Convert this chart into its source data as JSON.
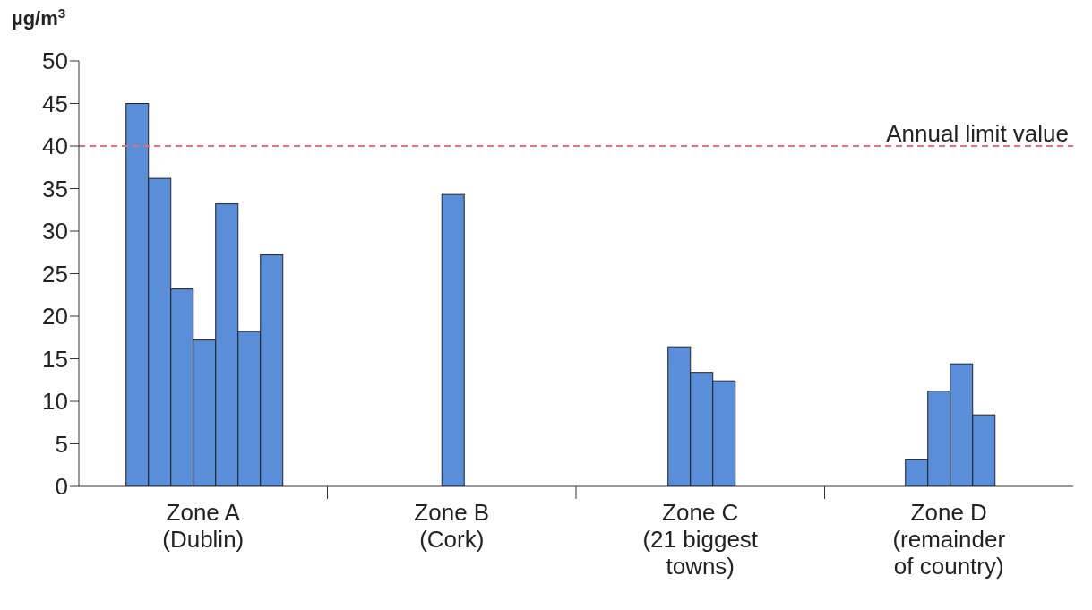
{
  "chart_data": {
    "type": "bar",
    "ylabel": "µg/m$^{3}$",
    "categories": [
      "Zone A\n(Dublin)",
      "Zone B\n(Cork)",
      "Zone C\n(21 biggest\ntowns)",
      "Zone D\n(remainder\nof country)"
    ],
    "series": [
      {
        "color": "#5a8ed8",
        "values": [
          45,
          34.3,
          16.4,
          3.2
        ]
      },
      {
        "color": "#5a8ed8",
        "values": [
          36.2,
          null,
          13.4,
          11.2
        ]
      },
      {
        "color": "#5a8ed8",
        "values": [
          23.2,
          null,
          12.4,
          14.4
        ]
      },
      {
        "color": "#5a8ed8",
        "values": [
          17.2,
          null,
          null,
          8.4
        ]
      },
      {
        "color": "#5a8ed8",
        "values": [
          33.2,
          null,
          null,
          null
        ]
      },
      {
        "color": "#5a8ed8",
        "values": [
          18.2,
          null,
          null,
          null
        ]
      },
      {
        "color": "#5a8ed8",
        "values": [
          27.2,
          null,
          null,
          null
        ]
      }
    ],
    "ylim": [
      0,
      50
    ],
    "yticks": [
      0,
      5,
      10,
      15,
      20,
      25,
      30,
      35,
      40,
      45,
      50
    ],
    "ref_lines": [
      {
        "axis": "y",
        "value": 40,
        "label": "Annual limit value",
        "color": "#e0707a",
        "line_style": "dashed"
      }
    ],
    "grid": false,
    "legend": false
  }
}
